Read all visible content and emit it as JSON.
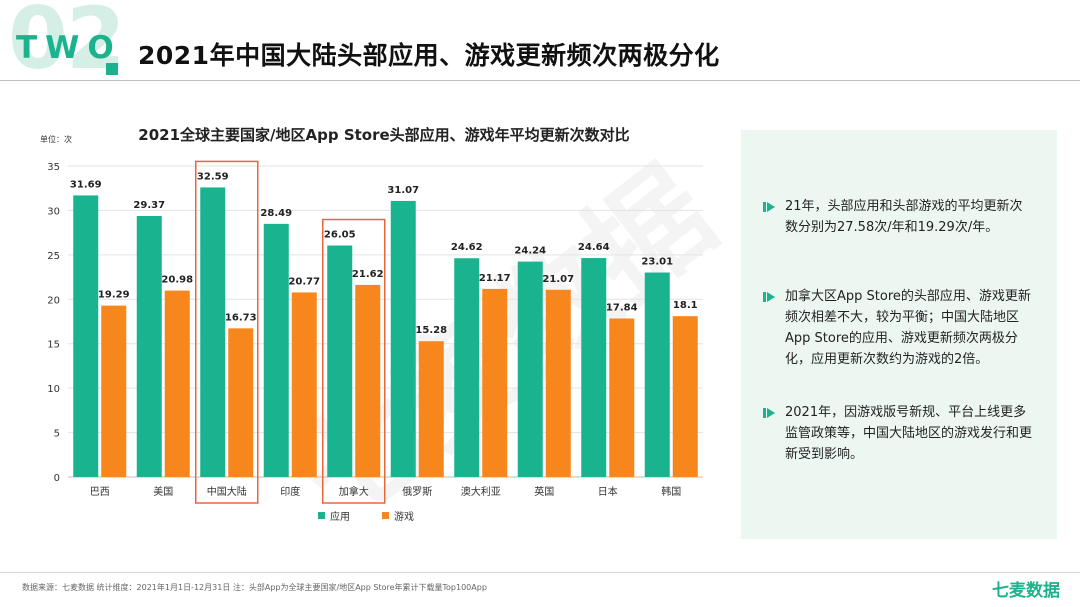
{
  "header": {
    "bg_number": "02",
    "section_label": "TWO",
    "title": "2021年中国大陆头部应用、游戏更新频次两极分化"
  },
  "chart_data": {
    "type": "bar",
    "title": "2021全球主要国家/地区App Store头部应用、游戏年平均更新次数对比",
    "unit_label": "单位：次",
    "categories": [
      "巴西",
      "美国",
      "中国大陆",
      "印度",
      "加拿大",
      "俄罗斯",
      "澳大利亚",
      "英国",
      "日本",
      "韩国"
    ],
    "series": [
      {
        "name": "应用",
        "color": "#19b38f",
        "values": [
          31.69,
          29.37,
          32.59,
          28.49,
          26.05,
          31.07,
          24.62,
          24.24,
          24.64,
          23.01
        ]
      },
      {
        "name": "游戏",
        "color": "#f7861c",
        "values": [
          19.29,
          20.98,
          16.73,
          20.77,
          21.62,
          15.28,
          21.17,
          21.07,
          17.84,
          18.1
        ]
      }
    ],
    "ylim": [
      0,
      35
    ],
    "yticks": [
      0,
      5,
      10,
      15,
      20,
      25,
      30,
      35
    ],
    "grid": true,
    "legend_position": "bottom",
    "highlighted_categories": [
      "中国大陆",
      "加拿大"
    ],
    "highlight_color": "#e5673a"
  },
  "insights": [
    {
      "text": "21年，头部应用和头部游戏的平均更新次数分别为27.58次/年和19.29次/年。"
    },
    {
      "text": "加拿大区App Store的头部应用、游戏更新频次相差不大，较为平衡；中国大陆地区App Store的应用、游戏更新频次两极分化，应用更新次数约为游戏的2倍。"
    },
    {
      "text": "2021年，因游戏版号新规、平台上线更多监管政策等，中国大陆地区的游戏发行和更新受到影响。"
    }
  ],
  "footer": {
    "source": "数据来源：七麦数据  统计维度：2021年1月1日-12月31日  注：头部App为全球主要国家/地区App Store年累计下载量Top100App",
    "brand": "七麦数据"
  },
  "watermark": "七麦数据",
  "colors": {
    "accent": "#1bb38d",
    "panel_bg": "#edf7f2"
  }
}
